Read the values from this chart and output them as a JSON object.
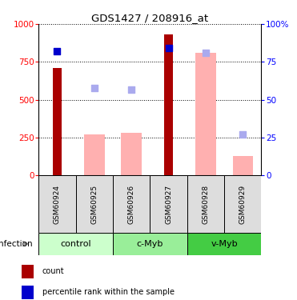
{
  "title": "GDS1427 / 208916_at",
  "samples": [
    "GSM60924",
    "GSM60925",
    "GSM60926",
    "GSM60927",
    "GSM60928",
    "GSM60929"
  ],
  "groups": [
    {
      "name": "control",
      "indices": [
        0,
        1
      ],
      "color": "#ccffcc"
    },
    {
      "name": "c-Myb",
      "indices": [
        2,
        3
      ],
      "color": "#99ee99"
    },
    {
      "name": "v-Myb",
      "indices": [
        4,
        5
      ],
      "color": "#44cc44"
    }
  ],
  "count_values": [
    710,
    null,
    null,
    930,
    null,
    null
  ],
  "rank_values": [
    82,
    null,
    null,
    84,
    null,
    null
  ],
  "absent_value": [
    null,
    270,
    280,
    null,
    810,
    130
  ],
  "absent_rank": [
    null,
    58,
    56.5,
    null,
    81,
    27
  ],
  "ylim_left": [
    0,
    1000
  ],
  "ylim_right": [
    0,
    100
  ],
  "yticks_left": [
    0,
    250,
    500,
    750,
    1000
  ],
  "yticks_right": [
    0,
    25,
    50,
    75,
    100
  ],
  "count_color": "#aa0000",
  "rank_color": "#0000cc",
  "absent_val_color": "#ffb0b0",
  "absent_rank_color": "#aaaaee",
  "sample_bg": "#dddddd",
  "grid_color": "black"
}
